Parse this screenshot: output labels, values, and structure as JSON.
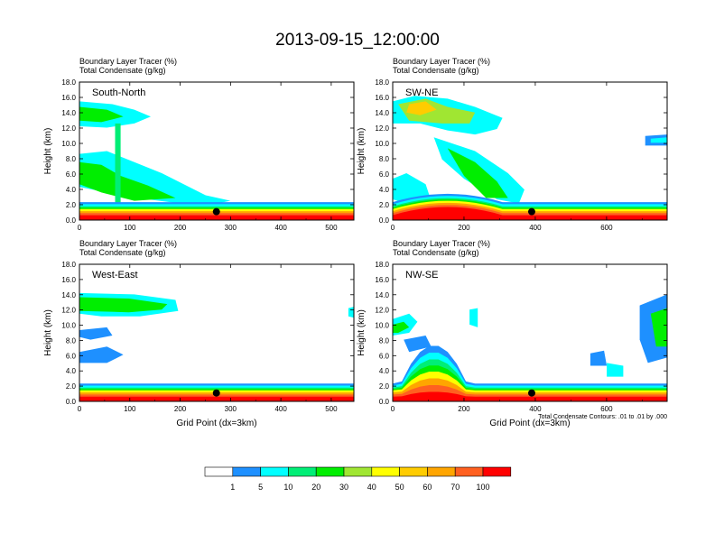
{
  "title": "2013-09-15_12:00:00",
  "colors": {
    "levels": [
      "#ffffff",
      "#1e90ff",
      "#00ffff",
      "#00ee76",
      "#00ee00",
      "#a0e632",
      "#ffff00",
      "#ffcc00",
      "#ffa500",
      "#ff6020",
      "#ff0000"
    ],
    "contour": "#000000",
    "marker": "#000000"
  },
  "colorbar": {
    "labels": [
      "1",
      "5",
      "10",
      "20",
      "30",
      "40",
      "50",
      "60",
      "70",
      "100"
    ]
  },
  "chart_data": [
    {
      "type": "heatmap",
      "label": "South-North",
      "subtitle_line1": "Boundary Layer Tracer    (%)",
      "subtitle_line2": "Total Condensate    (g/kg)",
      "ylabel": "Height (km)",
      "xlabel": "",
      "xlim": [
        0,
        545
      ],
      "ylim": [
        0,
        18
      ],
      "xticks": [
        "0",
        "100",
        "200",
        "300",
        "400",
        "500"
      ],
      "yticks": [
        "0.0",
        "2.0",
        "4.0",
        "6.0",
        "8.0",
        "10.0",
        "12.0",
        "14.0",
        "16.0",
        "18.0"
      ],
      "marker": {
        "x": 272,
        "y": 1.1
      }
    },
    {
      "type": "heatmap",
      "label": "SW-NE",
      "subtitle_line1": "Boundary Layer Tracer    (%)",
      "subtitle_line2": "Total Condensate    (g/kg)",
      "ylabel": "Height (km)",
      "xlabel": "",
      "xlim": [
        0,
        770
      ],
      "ylim": [
        0,
        18
      ],
      "xticks": [
        "0",
        "200",
        "400",
        "600"
      ],
      "yticks": [
        "0.0",
        "2.0",
        "4.0",
        "6.0",
        "8.0",
        "10.0",
        "12.0",
        "14.0",
        "16.0",
        "18.0"
      ],
      "marker": {
        "x": 390,
        "y": 1.1
      }
    },
    {
      "type": "heatmap",
      "label": "West-East",
      "subtitle_line1": "Boundary Layer Tracer    (%)",
      "subtitle_line2": "Total Condensate    (g/kg)",
      "ylabel": "Height (km)",
      "xlabel": "Grid Point (dx=3km)",
      "xlim": [
        0,
        545
      ],
      "ylim": [
        0,
        18
      ],
      "xticks": [
        "0",
        "100",
        "200",
        "300",
        "400",
        "500"
      ],
      "yticks": [
        "0.0",
        "2.0",
        "4.0",
        "6.0",
        "8.0",
        "10.0",
        "12.0",
        "14.0",
        "16.0",
        "18.0"
      ],
      "marker": {
        "x": 272,
        "y": 1.1
      }
    },
    {
      "type": "heatmap",
      "label": "NW-SE",
      "subtitle_line1": "Boundary Layer Tracer    (%)",
      "subtitle_line2": "Total Condensate    (g/kg)",
      "ylabel": "Height (km)",
      "xlabel": "Grid Point (dx=3km)",
      "xlim": [
        0,
        770
      ],
      "ylim": [
        0,
        18
      ],
      "xticks": [
        "0",
        "200",
        "400",
        "600"
      ],
      "yticks": [
        "0.0",
        "2.0",
        "4.0",
        "6.0",
        "8.0",
        "10.0",
        "12.0",
        "14.0",
        "16.0",
        "18.0"
      ],
      "marker": {
        "x": 390,
        "y": 1.1
      },
      "footnote": "Total Condensate Contours: .01 to .01 by .000"
    }
  ]
}
